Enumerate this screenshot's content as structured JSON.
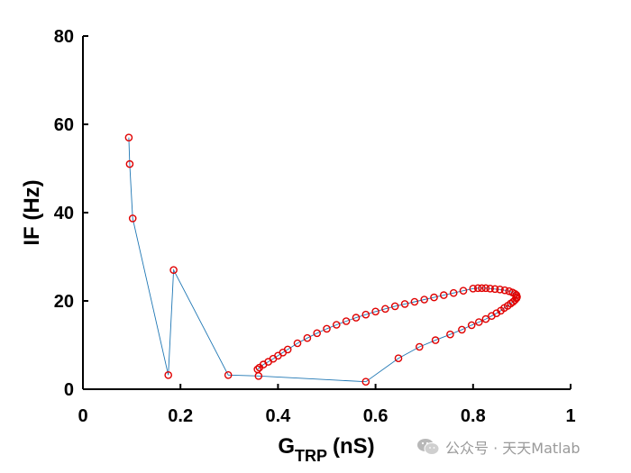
{
  "chart_data": {
    "type": "scatter",
    "xlabel": "G",
    "xlabel_sub": "TRP",
    "xlabel_unit": "(nS)",
    "ylabel": "IF (Hz)",
    "xlim": [
      0,
      1
    ],
    "ylim": [
      0,
      80
    ],
    "xticks": [
      0,
      0.2,
      0.4,
      0.6,
      0.8,
      1
    ],
    "xtick_labels": [
      "0",
      "0.2",
      "0.4",
      "0.6",
      "0.8",
      "1"
    ],
    "yticks": [
      0,
      20,
      40,
      60,
      80
    ],
    "ytick_labels": [
      "0",
      "20",
      "40",
      "60",
      "80"
    ],
    "grid": false,
    "colors": {
      "line": "#1f77b4",
      "marker": "#e00000",
      "axis": "#000000"
    },
    "series": [
      {
        "marker": "circle-open",
        "line": true,
        "x": [
          0.094,
          0.096,
          0.102,
          0.175,
          0.186,
          0.298,
          0.36,
          0.58,
          0.647,
          0.69,
          0.723,
          0.753,
          0.777,
          0.797,
          0.812,
          0.826,
          0.838,
          0.848,
          0.857,
          0.864,
          0.871,
          0.877,
          0.882,
          0.886,
          0.889,
          0.89,
          0.889,
          0.886,
          0.881,
          0.874,
          0.865,
          0.855,
          0.845,
          0.835,
          0.826,
          0.818,
          0.81,
          0.8,
          0.78,
          0.76,
          0.74,
          0.72,
          0.7,
          0.68,
          0.66,
          0.64,
          0.62,
          0.6,
          0.58,
          0.56,
          0.54,
          0.52,
          0.5,
          0.48,
          0.46,
          0.44,
          0.42,
          0.41,
          0.4,
          0.39,
          0.38,
          0.37,
          0.362,
          0.358
        ],
        "y": [
          57,
          51,
          38.7,
          3.2,
          27,
          3.2,
          3.0,
          1.7,
          7.0,
          9.6,
          11.1,
          12.4,
          13.5,
          14.5,
          15.2,
          15.9,
          16.6,
          17.2,
          17.8,
          18.4,
          18.9,
          19.4,
          19.8,
          20.2,
          20.6,
          20.9,
          21.3,
          21.6,
          21.9,
          22.2,
          22.4,
          22.6,
          22.7,
          22.8,
          22.9,
          22.9,
          22.9,
          22.8,
          22.3,
          21.8,
          21.3,
          20.8,
          20.3,
          19.8,
          19.3,
          18.8,
          18.2,
          17.6,
          16.9,
          16.2,
          15.4,
          14.6,
          13.7,
          12.7,
          11.6,
          10.4,
          9.0,
          8.3,
          7.6,
          6.9,
          6.2,
          5.6,
          4.9,
          4.5
        ]
      }
    ]
  },
  "watermark": {
    "text": "公众号 · 天天Matlab"
  }
}
